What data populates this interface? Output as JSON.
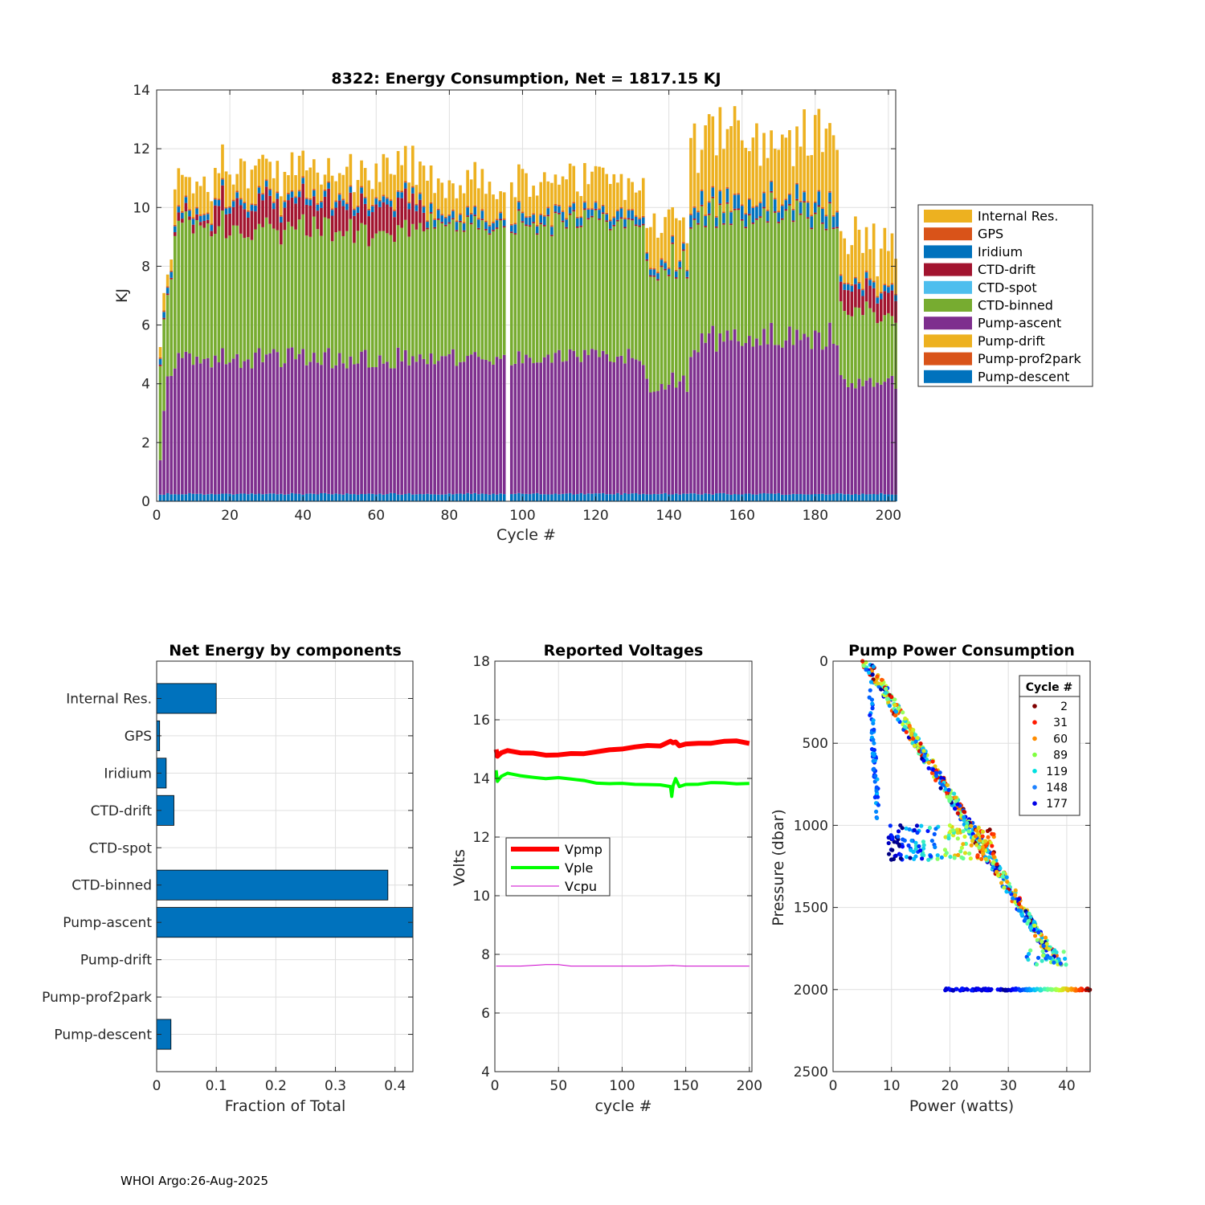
{
  "footer": "WHOI Argo:26-Aug-2025",
  "chart_data": [
    {
      "id": "energy",
      "type": "bar",
      "stacked": true,
      "title": "8322: Energy Consumption,  Net = 1817.15 KJ",
      "xlabel": "Cycle #",
      "ylabel": "KJ",
      "xlim": [
        0,
        202
      ],
      "ylim": [
        0,
        14
      ],
      "xticks": [
        0,
        20,
        40,
        60,
        80,
        100,
        120,
        140,
        160,
        180,
        200
      ],
      "yticks": [
        0,
        2,
        4,
        6,
        8,
        10,
        12,
        14
      ],
      "grid": true,
      "legend_position": "right",
      "legend": [
        "Internal Res.",
        "GPS",
        "Iridium",
        "CTD-drift",
        "CTD-spot",
        "CTD-binned",
        "Pump-ascent",
        "Pump-drift",
        "Pump-prof2park",
        "Pump-descent"
      ],
      "colors": {
        "Internal Res.": "#EDB120",
        "GPS": "#D95319",
        "Iridium": "#0072BD",
        "CTD-drift": "#A2142F",
        "CTD-spot": "#4DBEEE",
        "CTD-binned": "#77AC30",
        "Pump-ascent": "#7E2F8E",
        "Pump-drift": "#EDB120",
        "Pump-prof2park": "#D95319",
        "Pump-descent": "#0072BD"
      },
      "cycles": "1-202 (cycle 96 missing)",
      "approx_totals_by_cycle_range": [
        {
          "cycles": "1-4",
          "total": 8.3
        },
        {
          "cycles": "5-15",
          "total": 10.6
        },
        {
          "cycles": "16-73",
          "total": 10.9
        },
        {
          "cycles": "74-133",
          "total": 10.6
        },
        {
          "cycles": "134-145",
          "total": 9.6
        },
        {
          "cycles": "146-186",
          "total": 12.2
        },
        {
          "cycles": "187-202",
          "total": 9.2
        }
      ]
    },
    {
      "id": "components",
      "type": "barh",
      "title": "Net Energy by components",
      "xlabel": "Fraction of Total",
      "xlim": [
        0,
        0.43
      ],
      "xticks": [
        0,
        0.1,
        0.2,
        0.3,
        0.4
      ],
      "tick_labels": [
        "0",
        "0.1",
        "0.2",
        "0.3",
        "0.4"
      ],
      "grid": true,
      "categories": [
        "Internal Res.",
        "GPS",
        "Iridium",
        "CTD-drift",
        "CTD-spot",
        "CTD-binned",
        "Pump-ascent",
        "Pump-drift",
        "Pump-prof2park",
        "Pump-descent"
      ],
      "values": [
        0.1,
        0.005,
        0.016,
        0.029,
        0.0,
        0.388,
        0.44,
        0.0,
        0.0,
        0.024
      ],
      "color": "#0072BD"
    },
    {
      "id": "voltages",
      "type": "line",
      "title": "Reported Voltages",
      "xlabel": "cycle #",
      "ylabel": "Volts",
      "xlim": [
        0,
        202
      ],
      "ylim": [
        4,
        18
      ],
      "xticks": [
        0,
        50,
        100,
        150,
        200
      ],
      "yticks": [
        4,
        6,
        8,
        10,
        12,
        14,
        16,
        18
      ],
      "grid": true,
      "legend_position": "left",
      "series": [
        {
          "name": "Vpmp",
          "color": "#FF0000",
          "x": [
            1,
            2,
            5,
            10,
            20,
            30,
            40,
            50,
            60,
            70,
            80,
            90,
            100,
            110,
            120,
            130,
            138,
            140,
            142,
            145,
            150,
            160,
            170,
            180,
            190,
            200
          ],
          "values": [
            15.0,
            14.75,
            14.9,
            14.95,
            14.9,
            14.85,
            14.8,
            14.8,
            14.85,
            14.85,
            14.9,
            14.95,
            15.0,
            15.05,
            15.1,
            15.1,
            15.25,
            15.2,
            15.25,
            15.1,
            15.15,
            15.2,
            15.2,
            15.25,
            15.25,
            15.2
          ]
        },
        {
          "name": "Vple",
          "color": "#00FF00",
          "x": [
            1,
            2,
            5,
            10,
            20,
            30,
            40,
            50,
            60,
            70,
            80,
            90,
            100,
            110,
            120,
            130,
            138,
            139,
            140,
            142,
            145,
            150,
            160,
            170,
            180,
            190,
            200
          ],
          "values": [
            14.3,
            13.9,
            14.1,
            14.15,
            14.1,
            14.05,
            14.0,
            14.0,
            13.95,
            13.9,
            13.85,
            13.85,
            13.85,
            13.8,
            13.8,
            13.8,
            13.7,
            13.4,
            13.75,
            14.0,
            13.7,
            13.8,
            13.8,
            13.85,
            13.85,
            13.8,
            13.8
          ]
        },
        {
          "name": "Vcpu",
          "color": "#CC00CC",
          "x": [
            1,
            20,
            40,
            50,
            60,
            80,
            100,
            120,
            140,
            150,
            170,
            190,
            200
          ],
          "values": [
            7.6,
            7.6,
            7.65,
            7.65,
            7.6,
            7.6,
            7.6,
            7.6,
            7.62,
            7.6,
            7.6,
            7.6,
            7.6
          ]
        }
      ]
    },
    {
      "id": "pump",
      "type": "scatter",
      "title": "Pump Power Consumption",
      "xlabel": "Power (watts)",
      "ylabel": "Pressure (dbar)",
      "xlim": [
        0,
        44
      ],
      "ylim": [
        0,
        2500
      ],
      "y_reversed": true,
      "xticks": [
        0,
        10,
        20,
        30,
        40
      ],
      "yticks": [
        0,
        500,
        1000,
        1500,
        2000,
        2500
      ],
      "grid": true,
      "legend_title": "Cycle #",
      "legend_position": "top-right",
      "legend": [
        {
          "label": "2",
          "color": "#800000"
        },
        {
          "label": "31",
          "color": "#FF1A00"
        },
        {
          "label": "60",
          "color": "#FF8C00"
        },
        {
          "label": "89",
          "color": "#7FFF3F"
        },
        {
          "label": "119",
          "color": "#00E0E0"
        },
        {
          "label": "148",
          "color": "#1E82FF"
        },
        {
          "label": "177",
          "color": "#0000E6"
        }
      ],
      "clusters": [
        {
          "description": "main ascent trend",
          "p_range": [
            0,
            1850
          ],
          "watts_range": [
            5,
            40
          ]
        },
        {
          "description": "park-depth points at 2000 dbar",
          "p": 2000,
          "watts_range": [
            19,
            44
          ]
        },
        {
          "description": "profile start near 1000-1200 dbar",
          "p_range": [
            1000,
            1200
          ],
          "watts_range": [
            9,
            28
          ]
        },
        {
          "description": "descent branch",
          "p_range": [
            100,
            980
          ],
          "watts_range": [
            6,
            8
          ]
        }
      ]
    }
  ]
}
